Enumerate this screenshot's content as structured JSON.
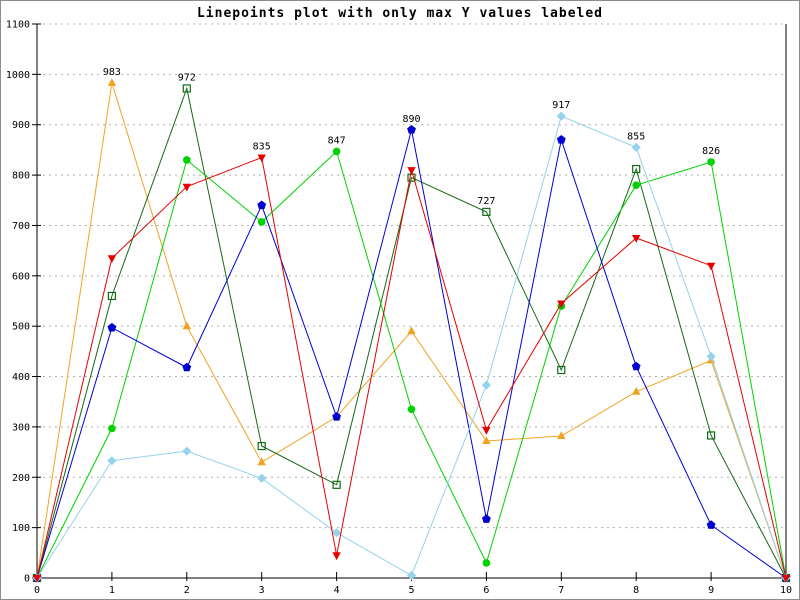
{
  "window": {
    "background": "#ffffff",
    "border_color": "#8c8c8c"
  },
  "chart_data": {
    "type": "line",
    "title": "Linepoints plot with only max Y values labeled",
    "xlabel": "",
    "ylabel": "",
    "xlim": [
      0,
      10
    ],
    "ylim": [
      0,
      1100
    ],
    "x_ticks": [
      0,
      1,
      2,
      3,
      4,
      5,
      6,
      7,
      8,
      9,
      10
    ],
    "y_ticks": [
      0,
      100,
      200,
      300,
      400,
      500,
      600,
      700,
      800,
      900,
      1000,
      1100
    ],
    "grid": "horizontal-dotted",
    "legend": "none",
    "axis_color": "#000000",
    "grid_color": "#b0b0b0",
    "x": [
      0,
      1,
      2,
      3,
      4,
      5,
      6,
      7,
      8,
      9,
      10
    ],
    "series": [
      {
        "name": "orange-triangle-series",
        "color": "#f0a322",
        "marker": "triangle-up",
        "values": [
          0,
          983,
          500,
          230,
          320,
          490,
          272,
          282,
          370,
          432,
          0
        ]
      },
      {
        "name": "dark-green-square-series",
        "color": "#146914",
        "marker": "open-square",
        "values": [
          0,
          560,
          972,
          262,
          185,
          795,
          727,
          413,
          812,
          283,
          0
        ]
      },
      {
        "name": "green-circle-series",
        "color": "#00d200",
        "marker": "circle",
        "values": [
          0,
          297,
          830,
          707,
          847,
          335,
          30,
          540,
          780,
          826,
          0
        ]
      },
      {
        "name": "blue-pentagon-series",
        "color": "#0000d0",
        "marker": "pentagon",
        "values": [
          0,
          497,
          418,
          740,
          320,
          890,
          117,
          870,
          420,
          105,
          0
        ]
      },
      {
        "name": "cyan-diamond-series",
        "color": "#96d2eb",
        "marker": "diamond",
        "values": [
          0,
          233,
          252,
          198,
          90,
          5,
          383,
          917,
          855,
          440,
          0
        ]
      },
      {
        "name": "red-triangle-down-series",
        "color": "#e60000",
        "marker": "triangle-down",
        "values": [
          0,
          635,
          777,
          835,
          45,
          810,
          294,
          545,
          675,
          620,
          0
        ]
      }
    ],
    "point_labels": [
      {
        "x": 1,
        "y": 983,
        "text": "983"
      },
      {
        "x": 2,
        "y": 972,
        "text": "972"
      },
      {
        "x": 3,
        "y": 835,
        "text": "835"
      },
      {
        "x": 4,
        "y": 847,
        "text": "847"
      },
      {
        "x": 5,
        "y": 890,
        "text": "890"
      },
      {
        "x": 6,
        "y": 727,
        "text": "727"
      },
      {
        "x": 7,
        "y": 917,
        "text": "917"
      },
      {
        "x": 8,
        "y": 855,
        "text": "855"
      },
      {
        "x": 9,
        "y": 826,
        "text": "826"
      }
    ]
  }
}
